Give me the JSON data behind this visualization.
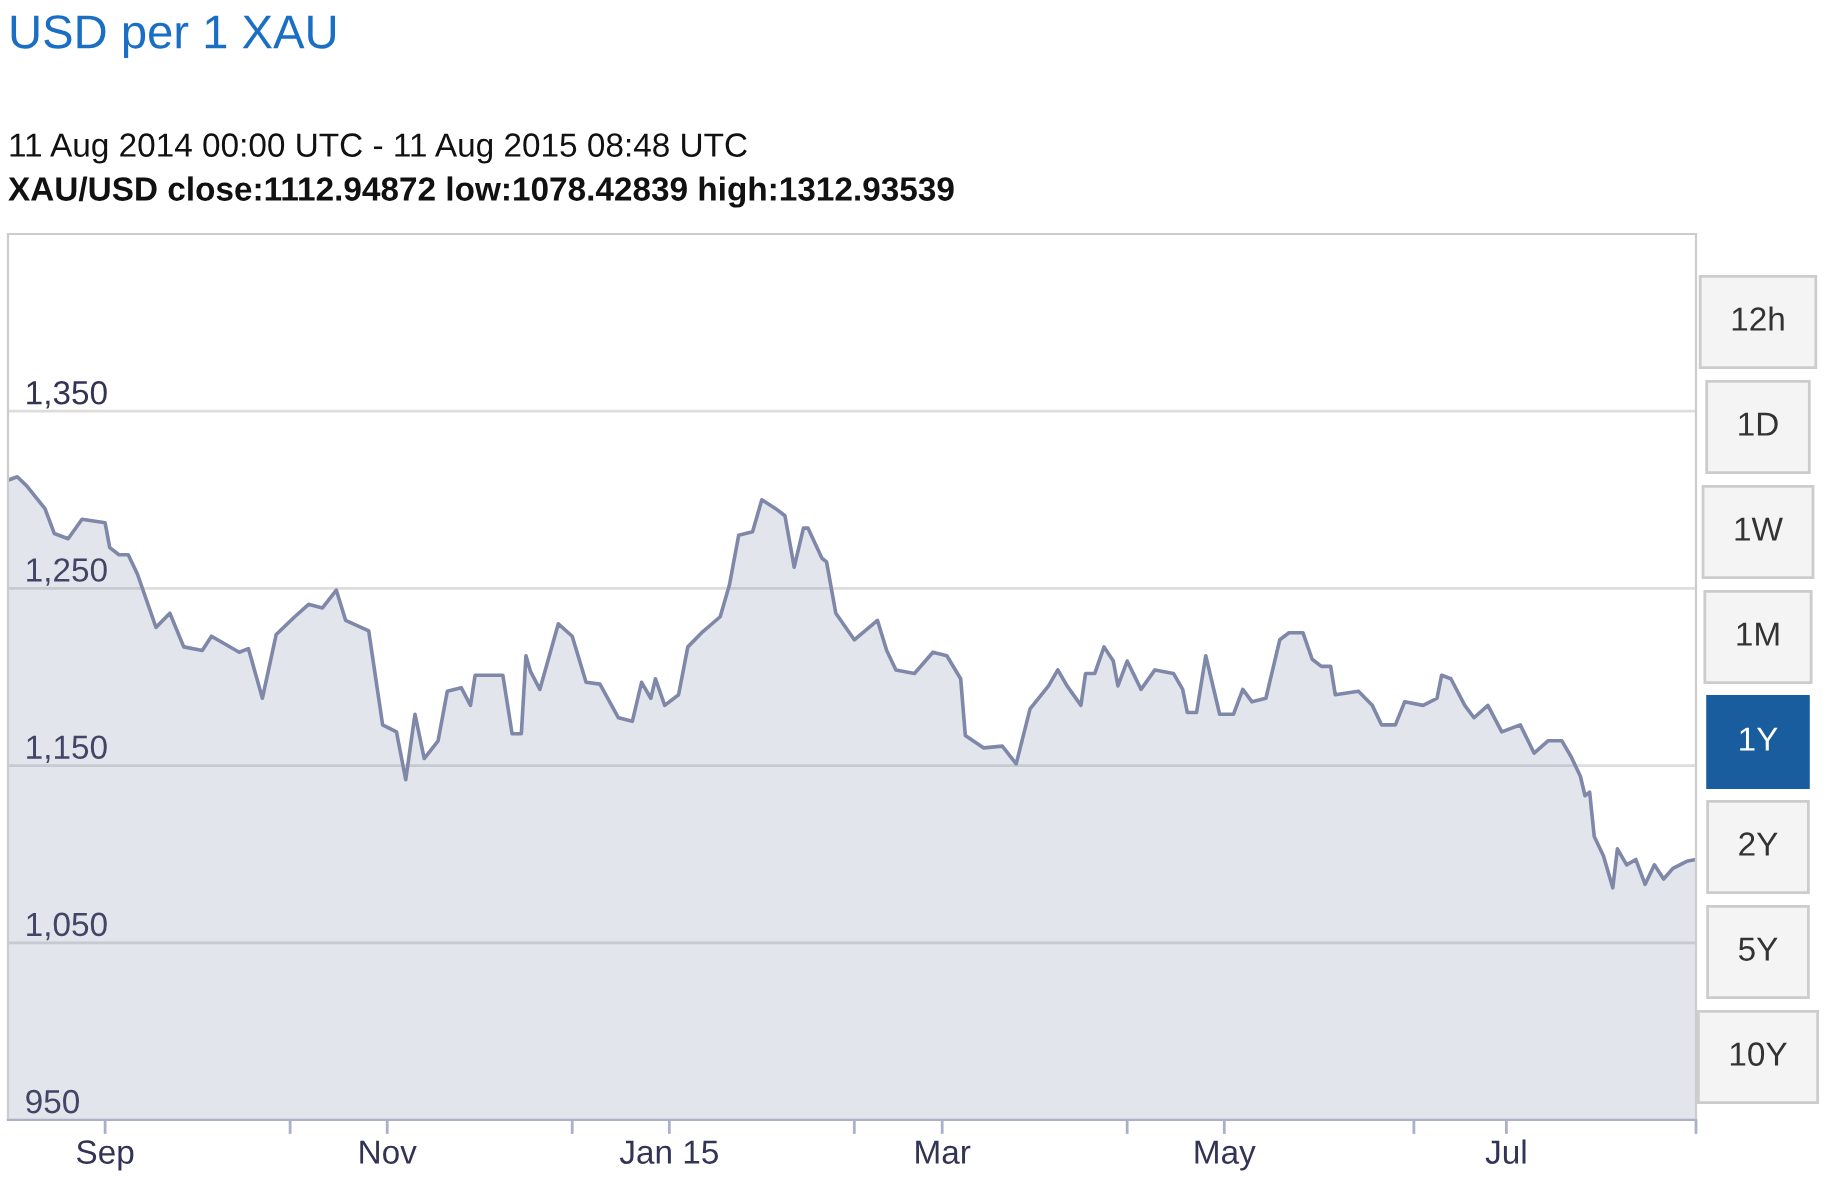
{
  "chart_data": {
    "type": "area",
    "title": "USD per 1 XAU",
    "subtitle": "11 Aug 2014 00:00 UTC - 11 Aug 2015 08:48 UTC",
    "annotations": [
      "XAU/USD close:1112.94872 low:1078.42839 high:1312.93539",
      "12h",
      "1D",
      "1W",
      "1M",
      "1Y",
      "2Y",
      "5Y",
      "10Y"
    ],
    "x": [
      "2014-08-11",
      "2014-08-13",
      "2014-08-15",
      "2014-08-19",
      "2014-08-21",
      "2014-08-24",
      "2014-08-27",
      "2014-09-01",
      "2014-09-02",
      "2014-09-04",
      "2014-09-06",
      "2014-09-08",
      "2014-09-12",
      "2014-09-15",
      "2014-09-18",
      "2014-09-22",
      "2014-09-24",
      "2014-09-30",
      "2014-10-02",
      "2014-10-05",
      "2014-10-08",
      "2014-10-12",
      "2014-10-15",
      "2014-10-18",
      "2014-10-21",
      "2014-10-23",
      "2014-10-28",
      "2014-10-31",
      "2014-11-03",
      "2014-11-05",
      "2014-11-07",
      "2014-11-09",
      "2014-11-12",
      "2014-11-14",
      "2014-11-17",
      "2014-11-19",
      "2014-11-20",
      "2014-11-26",
      "2014-11-28",
      "2014-11-30",
      "2014-12-01",
      "2014-12-02",
      "2014-12-04",
      "2014-12-08",
      "2014-12-11",
      "2014-12-14",
      "2014-12-17",
      "2014-12-21",
      "2014-12-24",
      "2014-12-26",
      "2014-12-28",
      "2014-12-29",
      "2014-12-31",
      "2015-01-03",
      "2015-01-05",
      "2015-01-08",
      "2015-01-12",
      "2015-01-14",
      "2015-01-16",
      "2015-01-19",
      "2015-01-21",
      "2015-01-24",
      "2015-01-26",
      "2015-01-28",
      "2015-01-30",
      "2015-01-31",
      "2015-02-03",
      "2015-02-04",
      "2015-02-06",
      "2015-02-10",
      "2015-02-15",
      "2015-02-17",
      "2015-02-19",
      "2015-02-23",
      "2015-02-27",
      "2015-03-02",
      "2015-03-05",
      "2015-03-06",
      "2015-03-10",
      "2015-03-14",
      "2015-03-17",
      "2015-03-20",
      "2015-03-24",
      "2015-03-26",
      "2015-03-28",
      "2015-03-31",
      "2015-04-01",
      "2015-04-03",
      "2015-04-05",
      "2015-04-07",
      "2015-04-08",
      "2015-04-10",
      "2015-04-13",
      "2015-04-16",
      "2015-04-20",
      "2015-04-22",
      "2015-04-23",
      "2015-04-25",
      "2015-04-27",
      "2015-04-30",
      "2015-05-03",
      "2015-05-05",
      "2015-05-07",
      "2015-05-10",
      "2015-05-13",
      "2015-05-15",
      "2015-05-18",
      "2015-05-20",
      "2015-05-22",
      "2015-05-24",
      "2015-05-25",
      "2015-05-30",
      "2015-06-02",
      "2015-06-04",
      "2015-06-07",
      "2015-06-09",
      "2015-06-13",
      "2015-06-16",
      "2015-06-17",
      "2015-06-19",
      "2015-06-22",
      "2015-06-24",
      "2015-06-27",
      "2015-06-30",
      "2015-07-04",
      "2015-07-07",
      "2015-07-10",
      "2015-07-13",
      "2015-07-15",
      "2015-07-17",
      "2015-07-18",
      "2015-07-19",
      "2015-07-20",
      "2015-07-22",
      "2015-07-24",
      "2015-07-25",
      "2015-07-27",
      "2015-07-29",
      "2015-07-31",
      "2015-08-02",
      "2015-08-04",
      "2015-08-06",
      "2015-08-09",
      "2015-08-11"
    ],
    "series": [
      {
        "color": "#7f88a8",
        "values": [
          1311,
          1313,
          1308,
          1295,
          1281,
          1278,
          1289,
          1287,
          1273,
          1269,
          1269,
          1258,
          1228,
          1236,
          1217,
          1215,
          1223,
          1214,
          1216,
          1188,
          1224,
          1234,
          1241,
          1239,
          1249,
          1232,
          1226,
          1173,
          1169,
          1142,
          1179,
          1154,
          1164,
          1192,
          1194,
          1184,
          1201,
          1201,
          1168,
          1168,
          1212,
          1203,
          1193,
          1230,
          1223,
          1197,
          1196,
          1177,
          1175,
          1197,
          1188,
          1199,
          1184,
          1190,
          1217,
          1225,
          1234,
          1252,
          1280,
          1282,
          1300,
          1295,
          1291,
          1262,
          1284,
          1284,
          1267,
          1265,
          1236,
          1221,
          1232,
          1215,
          1204,
          1202,
          1214,
          1212,
          1199,
          1167,
          1160,
          1161,
          1151,
          1182,
          1195,
          1204,
          1195,
          1184,
          1202,
          1202,
          1217,
          1209,
          1195,
          1209,
          1193,
          1204,
          1202,
          1193,
          1180,
          1180,
          1212,
          1179,
          1179,
          1193,
          1186,
          1188,
          1221,
          1225,
          1225,
          1210,
          1206,
          1206,
          1190,
          1192,
          1184,
          1173,
          1173,
          1186,
          1184,
          1188,
          1201,
          1199,
          1184,
          1177,
          1184,
          1169,
          1173,
          1157,
          1164,
          1164,
          1155,
          1144,
          1133,
          1135,
          1110,
          1099,
          1081,
          1103,
          1094,
          1097,
          1083,
          1094,
          1086,
          1092,
          1096,
          1097
        ]
      }
    ],
    "xlim": [
      "2014-08-11",
      "2015-08-11"
    ],
    "xticks": [
      {
        "value": "2014-09-01",
        "label": "Sep"
      },
      {
        "value": "2014-10-11",
        "label": null
      },
      {
        "value": "2014-11-01",
        "label": "Nov"
      },
      {
        "value": "2014-12-11",
        "label": null
      },
      {
        "value": "2015-01-01",
        "label": "Jan 15"
      },
      {
        "value": "2015-02-10",
        "label": null
      },
      {
        "value": "2015-03-01",
        "label": "Mar"
      },
      {
        "value": "2015-04-10",
        "label": null
      },
      {
        "value": "2015-05-01",
        "label": "May"
      },
      {
        "value": "2015-06-11",
        "label": null
      },
      {
        "value": "2015-07-01",
        "label": "Jul"
      },
      {
        "value": "2015-08-11",
        "label": null
      }
    ],
    "ylim": [
      950,
      1450
    ],
    "yticks": [
      {
        "value": 950,
        "label": "950"
      },
      {
        "value": 1050,
        "label": "1,050"
      },
      {
        "value": 1150,
        "label": "1,150"
      },
      {
        "value": 1250,
        "label": "1,250"
      },
      {
        "value": 1350,
        "label": "1,350"
      }
    ],
    "grid": "y",
    "legend": false
  }
}
